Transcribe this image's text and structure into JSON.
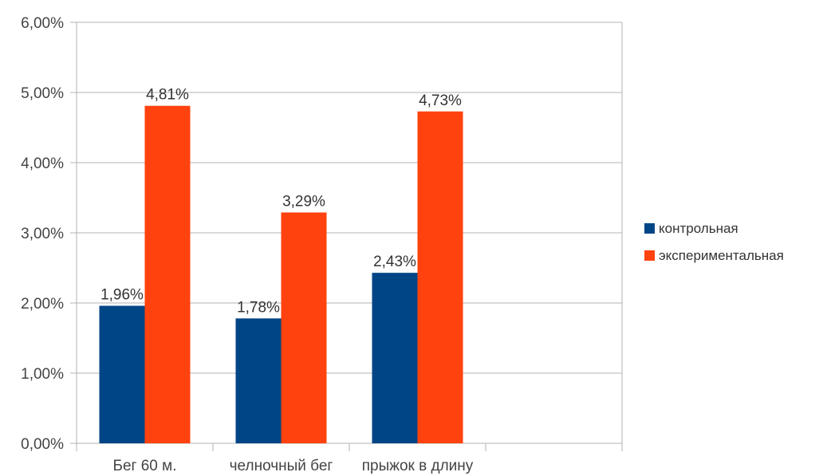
{
  "chart_data": {
    "type": "bar",
    "categories": [
      "Бег 60 м.",
      "челночный бег",
      "прыжок в длину"
    ],
    "series": [
      {
        "name": "контрольная",
        "color": "#004586",
        "values": [
          1.96,
          1.78,
          2.43
        ],
        "labels": [
          "1,96%",
          "1,78%",
          "2,43%"
        ]
      },
      {
        "name": "экспериментальная",
        "color": "#ff420e",
        "values": [
          4.81,
          3.29,
          4.73
        ],
        "labels": [
          "4,81%",
          "3,29%",
          "4,73%"
        ]
      }
    ],
    "ylim": [
      0,
      6
    ],
    "yticks": [
      0,
      1,
      2,
      3,
      4,
      5,
      6
    ],
    "ytick_labels": [
      "0,00%",
      "1,00%",
      "2,00%",
      "3,00%",
      "4,00%",
      "5,00%",
      "6,00%"
    ],
    "grid": true,
    "legend_position": "right",
    "empty_slots": 1
  }
}
